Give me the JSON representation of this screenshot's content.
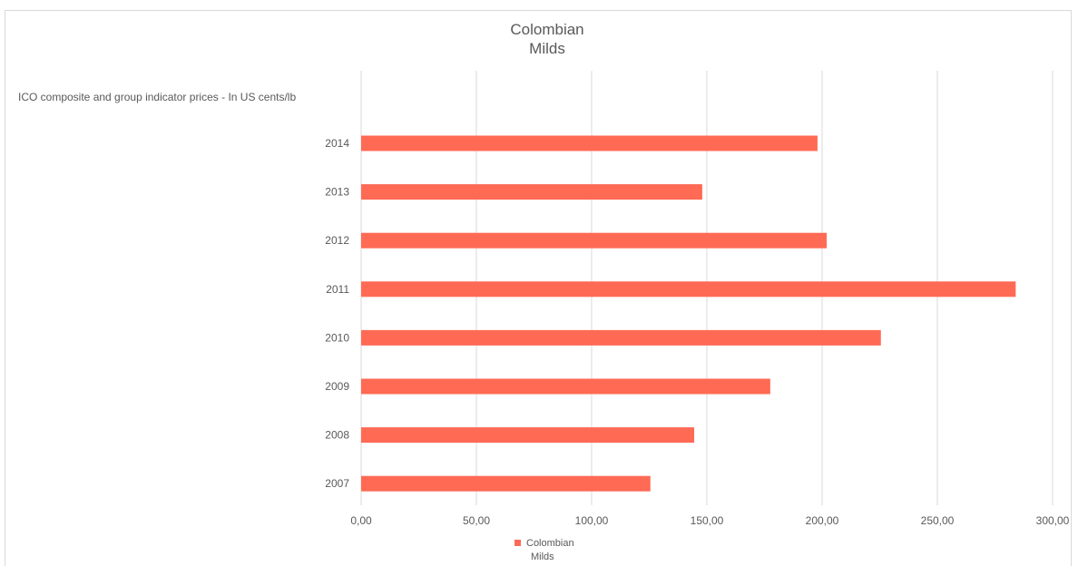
{
  "chart_data": {
    "type": "bar",
    "orientation": "horizontal",
    "title_lines": [
      "Colombian",
      "Milds"
    ],
    "subtitle_label": "ICO composite and group indicator prices - In US cents/lb",
    "categories": [
      "2014",
      "2013",
      "2012",
      "2011",
      "2010",
      "2009",
      "2008",
      "2007"
    ],
    "series": [
      {
        "name_lines": [
          "Colombian",
          "Milds"
        ],
        "color": "#ff6a55",
        "values": [
          198,
          148,
          202,
          284,
          225.5,
          177.5,
          144.5,
          125.5
        ]
      }
    ],
    "xlim": [
      0,
      300
    ],
    "x_ticks": [
      0,
      50,
      100,
      150,
      200,
      250,
      300
    ],
    "x_tick_labels": [
      "0,00",
      "50,00",
      "100,00",
      "150,00",
      "200,00",
      "250,00",
      "300,00"
    ],
    "grid": "vertical",
    "legend_position": "bottom"
  }
}
